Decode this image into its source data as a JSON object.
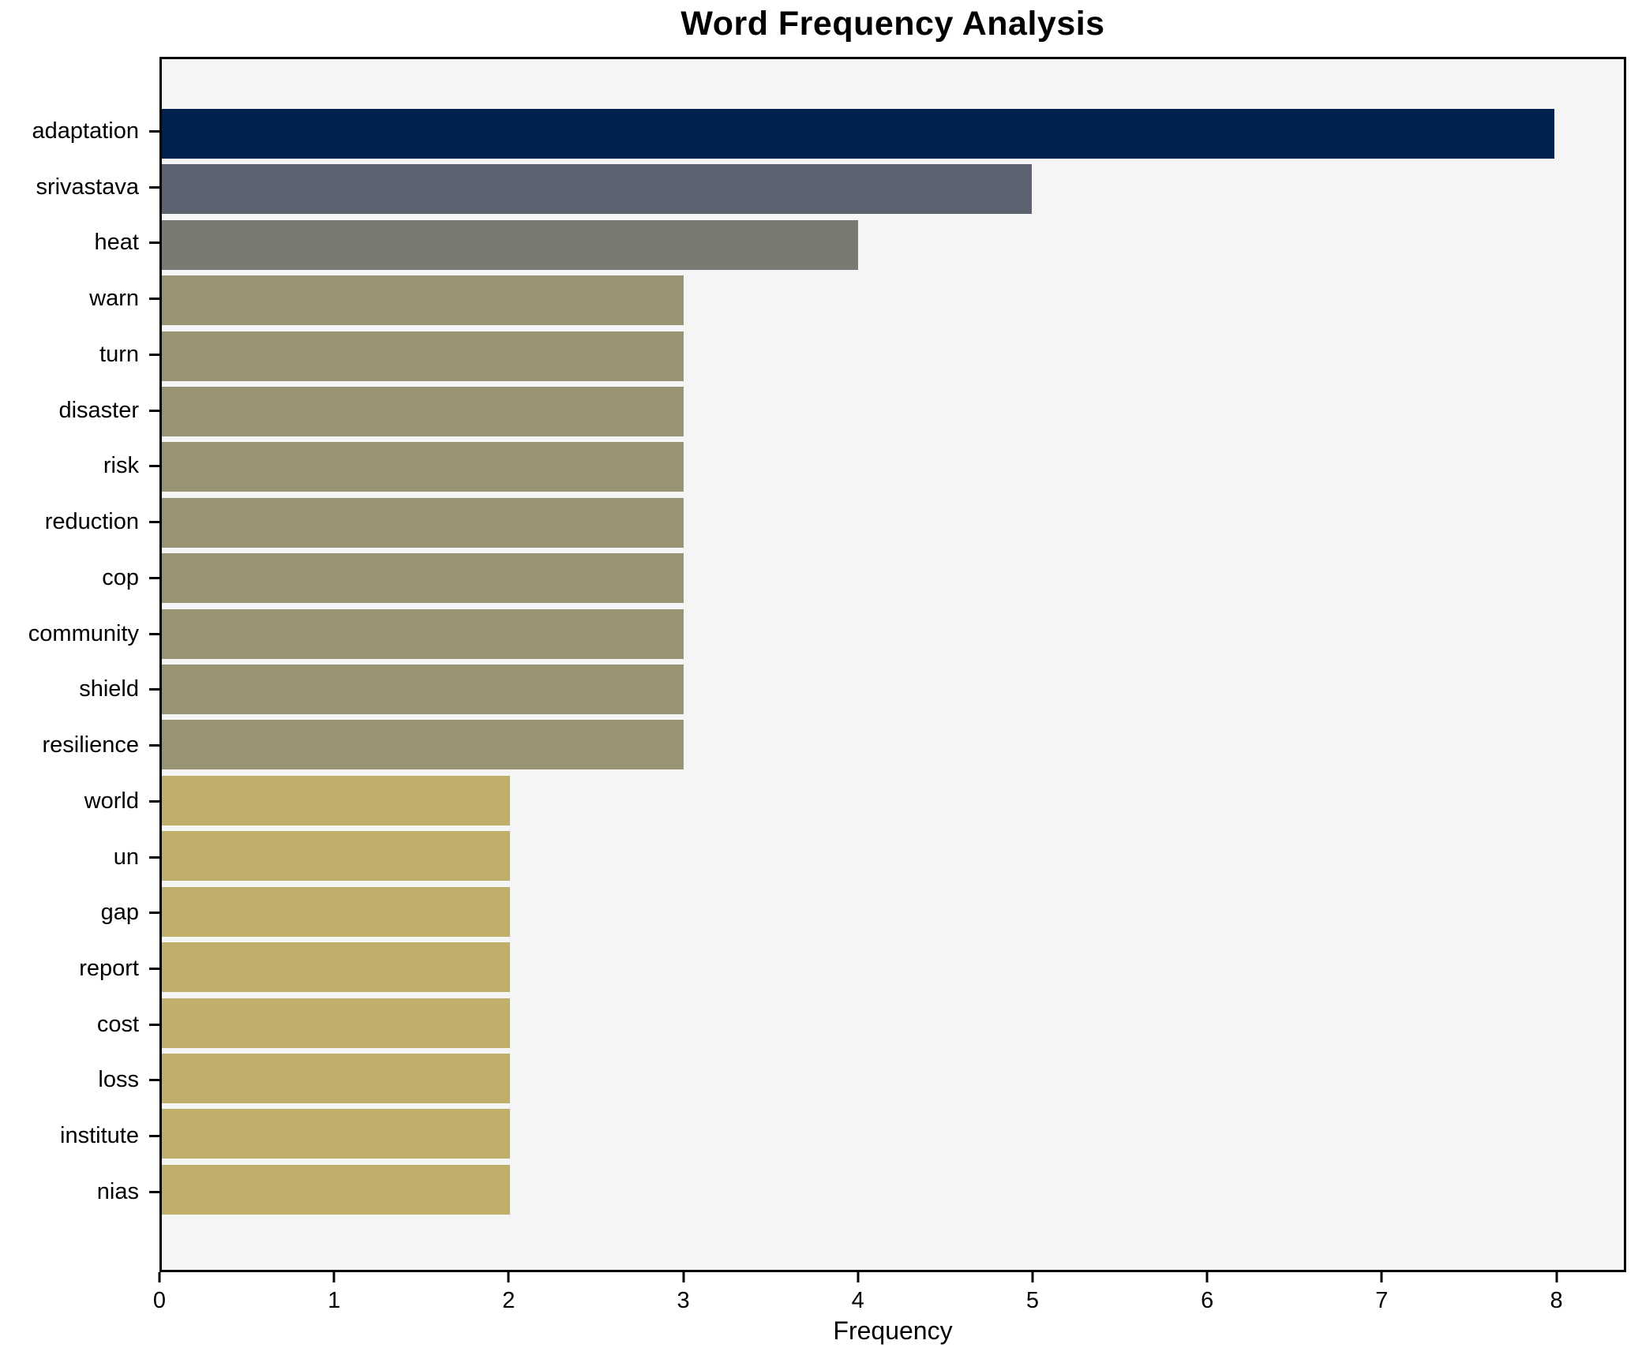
{
  "chart_data": {
    "type": "bar",
    "orientation": "horizontal",
    "title": "Word Frequency Analysis",
    "xlabel": "Frequency",
    "ylabel": "",
    "xlim": [
      0,
      8.4
    ],
    "xticks": [
      0,
      1,
      2,
      3,
      4,
      5,
      6,
      7,
      8
    ],
    "grid": false,
    "legend": "none",
    "plot_background": "#f5f5f6",
    "figure_background": "#ffffff",
    "axis_color": "#000000",
    "categories": [
      "adaptation",
      "srivastava",
      "heat",
      "warn",
      "turn",
      "disaster",
      "risk",
      "reduction",
      "cop",
      "community",
      "shield",
      "resilience",
      "world",
      "un",
      "gap",
      "report",
      "cost",
      "loss",
      "institute",
      "nias"
    ],
    "values": [
      8,
      5,
      4,
      3,
      3,
      3,
      3,
      3,
      3,
      3,
      3,
      3,
      2,
      2,
      2,
      2,
      2,
      2,
      2,
      2
    ],
    "bar_colors": [
      "#00224e",
      "#5d6271",
      "#7a7a72",
      "#9a9372",
      "#9a9372",
      "#9a9372",
      "#9a9372",
      "#9a9372",
      "#9a9372",
      "#9a9372",
      "#9a9372",
      "#9a9372",
      "#c0ae6b",
      "#c0ae6b",
      "#c0ae6b",
      "#c0ae6b",
      "#c0ae6b",
      "#c0ae6b",
      "#c0ae6b",
      "#c0ae6b"
    ],
    "value_color_map": {
      "8": "#00224e",
      "5": "#5d6271",
      "4": "#7a7a72",
      "3": "#9a9372",
      "2": "#c0ae6b"
    }
  }
}
